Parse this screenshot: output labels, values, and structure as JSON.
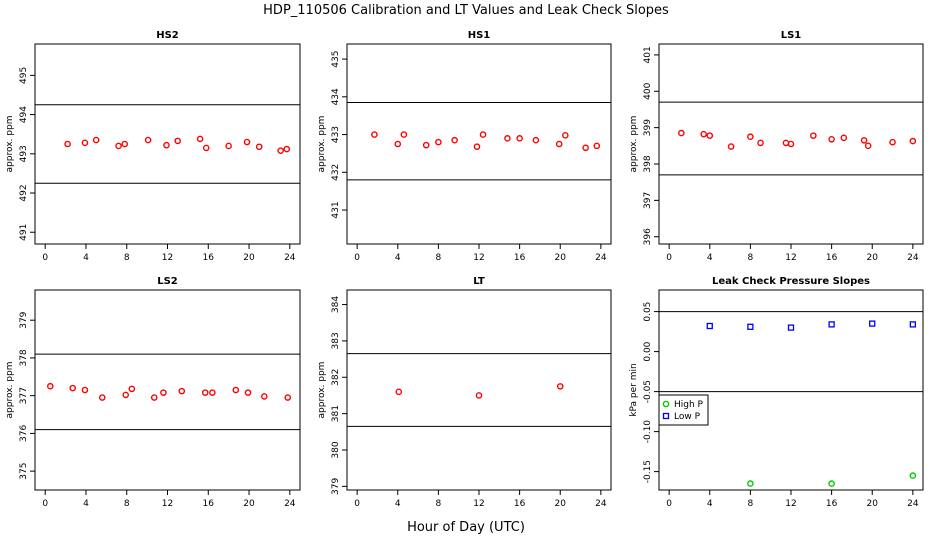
{
  "figure": {
    "title": "HDP_110506  Calibration and LT Values and Leak Check Slopes",
    "xlabel": "Hour of Day (UTC)"
  },
  "chart_data": [
    {
      "type": "scatter",
      "title": "HS2",
      "ylabel": "approx. ppm",
      "xlim": [
        -1,
        25
      ],
      "ylim": [
        490.7,
        495.8
      ],
      "xticks": [
        0,
        4,
        8,
        12,
        16,
        20,
        24
      ],
      "yticks": [
        491,
        492,
        493,
        494,
        495
      ],
      "hlines": [
        494.25,
        492.25
      ],
      "series": [
        {
          "marker": "circle",
          "color": "#ff0000",
          "points": [
            [
              2.2,
              493.25
            ],
            [
              3.9,
              493.28
            ],
            [
              5.0,
              493.35
            ],
            [
              7.2,
              493.2
            ],
            [
              7.8,
              493.25
            ],
            [
              10.1,
              493.35
            ],
            [
              11.9,
              493.22
            ],
            [
              13.0,
              493.33
            ],
            [
              15.2,
              493.38
            ],
            [
              15.8,
              493.15
            ],
            [
              18.0,
              493.2
            ],
            [
              19.8,
              493.3
            ],
            [
              21.0,
              493.18
            ],
            [
              23.1,
              493.08
            ],
            [
              23.7,
              493.12
            ]
          ]
        }
      ]
    },
    {
      "type": "scatter",
      "title": "HS1",
      "ylabel": "approx. ppm",
      "xlim": [
        -1,
        25
      ],
      "ylim": [
        430.1,
        435.4
      ],
      "xticks": [
        0,
        4,
        8,
        12,
        16,
        20,
        24
      ],
      "yticks": [
        431,
        432,
        433,
        434,
        435
      ],
      "hlines": [
        433.85,
        431.8
      ],
      "series": [
        {
          "marker": "circle",
          "color": "#ff0000",
          "points": [
            [
              1.7,
              433.0
            ],
            [
              4.0,
              432.75
            ],
            [
              4.6,
              433.0
            ],
            [
              6.8,
              432.72
            ],
            [
              8.0,
              432.8
            ],
            [
              9.6,
              432.85
            ],
            [
              11.8,
              432.68
            ],
            [
              12.4,
              433.0
            ],
            [
              14.8,
              432.9
            ],
            [
              16.0,
              432.9
            ],
            [
              17.6,
              432.85
            ],
            [
              19.9,
              432.75
            ],
            [
              20.5,
              432.98
            ],
            [
              22.5,
              432.65
            ],
            [
              23.6,
              432.7
            ]
          ]
        }
      ]
    },
    {
      "type": "scatter",
      "title": "LS1",
      "ylabel": "approx. ppm",
      "xlim": [
        -1,
        25
      ],
      "ylim": [
        395.8,
        401.3
      ],
      "xticks": [
        0,
        4,
        8,
        12,
        16,
        20,
        24
      ],
      "yticks": [
        396,
        397,
        398,
        399,
        400,
        401
      ],
      "hlines": [
        399.7,
        397.7
      ],
      "series": [
        {
          "marker": "circle",
          "color": "#ff0000",
          "points": [
            [
              1.2,
              398.85
            ],
            [
              3.4,
              398.82
            ],
            [
              4.0,
              398.78
            ],
            [
              6.1,
              398.48
            ],
            [
              8.0,
              398.75
            ],
            [
              9.0,
              398.58
            ],
            [
              11.5,
              398.58
            ],
            [
              12.0,
              398.55
            ],
            [
              14.2,
              398.78
            ],
            [
              16.0,
              398.68
            ],
            [
              17.2,
              398.72
            ],
            [
              19.2,
              398.65
            ],
            [
              19.6,
              398.5
            ],
            [
              22.0,
              398.6
            ],
            [
              24.0,
              398.63
            ]
          ]
        }
      ]
    },
    {
      "type": "scatter",
      "title": "LS2",
      "ylabel": "approx. ppm",
      "xlim": [
        -1,
        25
      ],
      "ylim": [
        374.5,
        379.8
      ],
      "xticks": [
        0,
        4,
        8,
        12,
        16,
        20,
        24
      ],
      "yticks": [
        375,
        376,
        377,
        378,
        379
      ],
      "hlines": [
        378.1,
        376.1
      ],
      "series": [
        {
          "marker": "circle",
          "color": "#ff0000",
          "points": [
            [
              0.5,
              377.25
            ],
            [
              2.7,
              377.2
            ],
            [
              3.9,
              377.15
            ],
            [
              5.6,
              376.95
            ],
            [
              7.9,
              377.02
            ],
            [
              8.5,
              377.18
            ],
            [
              10.7,
              376.95
            ],
            [
              11.6,
              377.08
            ],
            [
              13.4,
              377.12
            ],
            [
              15.7,
              377.08
            ],
            [
              16.4,
              377.08
            ],
            [
              18.7,
              377.15
            ],
            [
              19.9,
              377.08
            ],
            [
              21.5,
              376.98
            ],
            [
              23.8,
              376.95
            ]
          ]
        }
      ]
    },
    {
      "type": "scatter",
      "title": "LT",
      "ylabel": "approx. ppm",
      "xlim": [
        -1,
        25
      ],
      "ylim": [
        378.9,
        384.4
      ],
      "xticks": [
        0,
        4,
        8,
        12,
        16,
        20,
        24
      ],
      "yticks": [
        379,
        380,
        381,
        382,
        383,
        384
      ],
      "hlines": [
        382.65,
        380.65
      ],
      "series": [
        {
          "marker": "circle",
          "color": "#ff0000",
          "points": [
            [
              4.1,
              381.6
            ],
            [
              12.0,
              381.5
            ],
            [
              20.0,
              381.75
            ]
          ]
        }
      ]
    },
    {
      "type": "scatter",
      "title": "Leak Check Pressure Slopes",
      "ylabel": "kPa per min",
      "xlim": [
        -1,
        25
      ],
      "ylim": [
        -0.173,
        0.077
      ],
      "xticks": [
        0,
        4,
        8,
        12,
        16,
        20,
        24
      ],
      "yticks": [
        -0.15,
        -0.1,
        -0.05,
        0.0,
        0.05
      ],
      "ytick_labels": [
        "-0.15",
        "-0.10",
        "-0.05",
        "0.00",
        "0.05"
      ],
      "hlines": [
        0.05,
        -0.05
      ],
      "legend": {
        "position": "left",
        "entries": [
          "High P",
          "Low P"
        ]
      },
      "series": [
        {
          "name": "High P",
          "marker": "circle",
          "color": "#00cc00",
          "points": [
            [
              8.0,
              -0.165
            ],
            [
              16.0,
              -0.165
            ],
            [
              24.0,
              -0.155
            ]
          ]
        },
        {
          "name": "Low P",
          "marker": "square",
          "color": "#0000ff",
          "points": [
            [
              4.0,
              0.032
            ],
            [
              8.0,
              0.031
            ],
            [
              12.0,
              0.03
            ],
            [
              16.0,
              0.034
            ],
            [
              20.0,
              0.035
            ],
            [
              24.0,
              0.034
            ]
          ]
        }
      ]
    }
  ]
}
